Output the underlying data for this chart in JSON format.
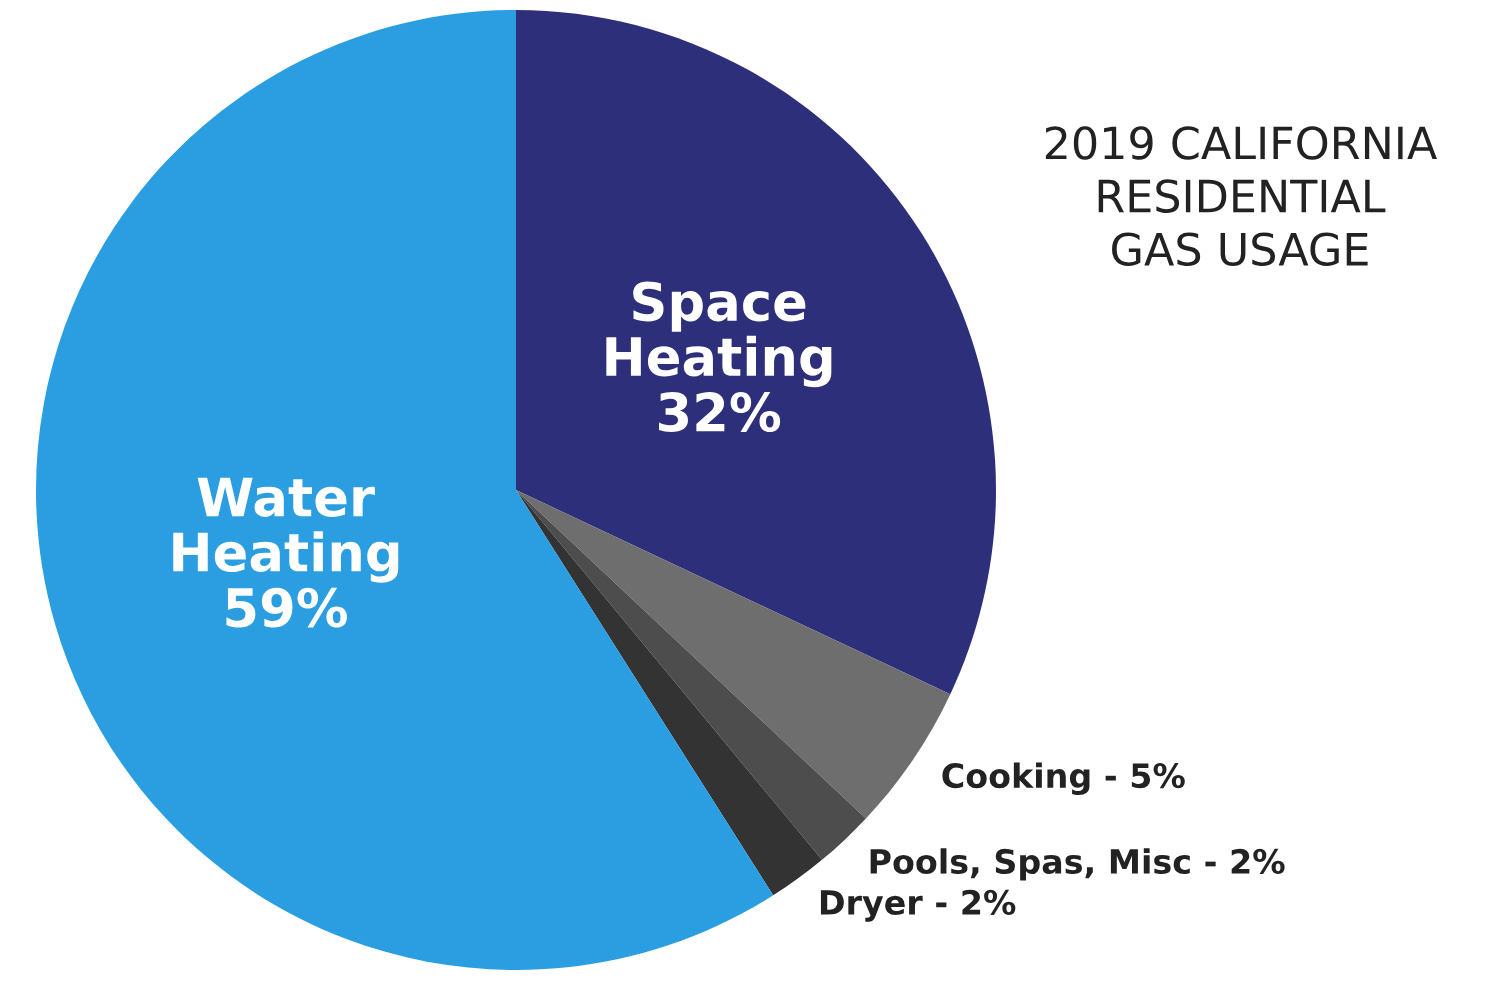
{
  "chart_data": {
    "type": "pie",
    "title": "2019 CALIFORNIA\nRESIDENTIAL\nGAS USAGE",
    "categories": [
      "Space Heating",
      "Cooking",
      "Pools, Spas, Misc",
      "Dryer",
      "Water Heating"
    ],
    "values": [
      32,
      5,
      2,
      2,
      59
    ],
    "value_labels": [
      "32%",
      "5%",
      "2%",
      "2%",
      "59%"
    ],
    "colors": [
      "#2e2f7a",
      "#6e6e6e",
      "#4d4d4d",
      "#333333",
      "#2a9ee0"
    ],
    "legend": false
  }
}
